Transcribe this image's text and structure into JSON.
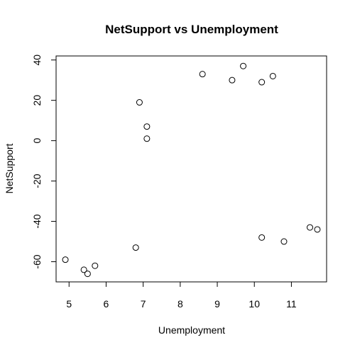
{
  "chart_data": {
    "type": "scatter",
    "title": "NetSupport vs Unemployment",
    "xlabel": "Unemployment",
    "ylabel": "NetSupport",
    "xlim": [
      4.65,
      11.95
    ],
    "ylim": [
      -70,
      42
    ],
    "xticks": [
      5,
      6,
      7,
      8,
      9,
      10,
      11
    ],
    "yticks": [
      -60,
      -40,
      -20,
      0,
      20,
      40
    ],
    "grid": false,
    "legend": "none",
    "marker": "open-circle",
    "points": [
      {
        "x": 4.9,
        "y": -59
      },
      {
        "x": 5.4,
        "y": -64
      },
      {
        "x": 5.5,
        "y": -66
      },
      {
        "x": 5.7,
        "y": -62
      },
      {
        "x": 6.8,
        "y": -53
      },
      {
        "x": 6.9,
        "y": 19
      },
      {
        "x": 7.1,
        "y": 7
      },
      {
        "x": 7.1,
        "y": 1
      },
      {
        "x": 8.6,
        "y": 33
      },
      {
        "x": 9.4,
        "y": 30
      },
      {
        "x": 9.7,
        "y": 37
      },
      {
        "x": 10.2,
        "y": 29
      },
      {
        "x": 10.5,
        "y": 32
      },
      {
        "x": 10.2,
        "y": -48
      },
      {
        "x": 10.8,
        "y": -50
      },
      {
        "x": 11.5,
        "y": -43
      },
      {
        "x": 11.7,
        "y": -44
      }
    ]
  }
}
